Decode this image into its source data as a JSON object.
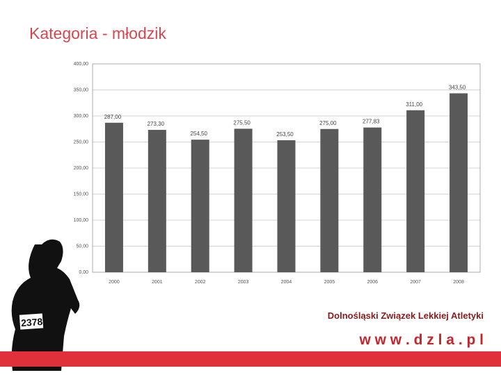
{
  "header": {
    "title": "Kategoria - młodzik"
  },
  "chart_data": {
    "type": "bar",
    "categories": [
      "2000",
      "2001",
      "2002",
      "2003",
      "2004",
      "2005",
      "2006",
      "2007",
      "2008"
    ],
    "values": [
      287.0,
      273.3,
      254.5,
      275.5,
      253.5,
      275.0,
      277.83,
      311.0,
      343.5
    ],
    "value_labels": [
      "287,00",
      "273,30",
      "254,50",
      "275,50",
      "253,50",
      "275,00",
      "277,83",
      "311,00",
      "343,50"
    ],
    "color": "#595959",
    "ylim": [
      0,
      400
    ],
    "yticks": [
      {
        "value": 0,
        "label": "0,00"
      },
      {
        "value": 50,
        "label": "50,00"
      },
      {
        "value": 100,
        "label": "100,00"
      },
      {
        "value": 150,
        "label": "150,00"
      },
      {
        "value": 200,
        "label": "200,00"
      },
      {
        "value": 250,
        "label": "250,00"
      },
      {
        "value": 300,
        "label": "300,00"
      },
      {
        "value": 350,
        "label": "350,00"
      },
      {
        "value": 400,
        "label": "400,00"
      }
    ],
    "grid": true
  },
  "image": {
    "bib": "2378"
  },
  "footer": {
    "organization": "Dolnośląski Związek Lekkiej Atletyki",
    "website": "w w w . d z l a . p l"
  }
}
